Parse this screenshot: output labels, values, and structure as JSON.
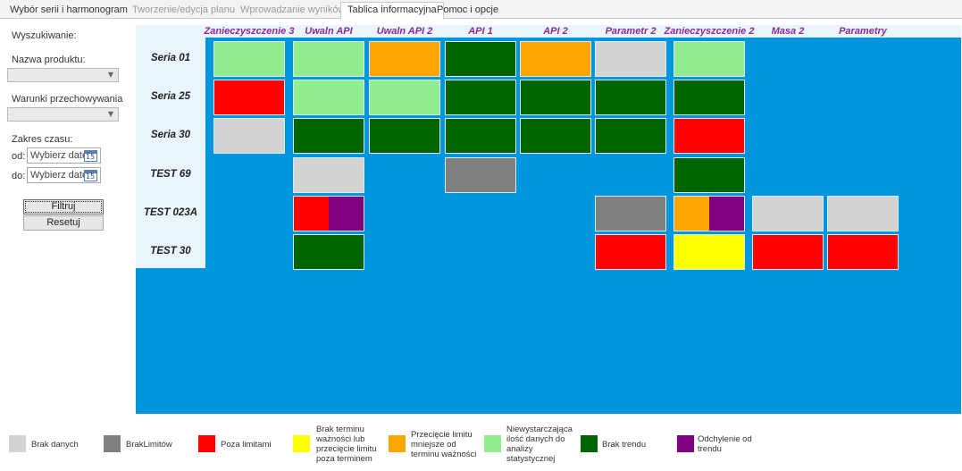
{
  "tabs": [
    {
      "label": "Wybór serii i harmonogram",
      "state": "normal"
    },
    {
      "label": "Tworzenie/edycja planu",
      "state": "disabled"
    },
    {
      "label": "Wprowadzanie wyników",
      "state": "disabled"
    },
    {
      "label": "Tablica informacyjna",
      "state": "active"
    },
    {
      "label": "Pomoc i opcje",
      "state": "normal"
    }
  ],
  "sidebar": {
    "search_title": "Wyszukiwanie:",
    "product_label": "Nazwa produktu:",
    "product_value": "",
    "storage_label": "Warunki przechowywania",
    "storage_value": "",
    "range_label": "Zakres czasu:",
    "from_label": "od:",
    "to_label": "do:",
    "date_placeholder": "Wybierz datę",
    "calendar_day": "15",
    "filter_button": "Filtruj",
    "reset_button": "Resetuj"
  },
  "board": {
    "columns": [
      "Zanieczyszczenie 3",
      "Uwaln API",
      "Uwaln API 2",
      "API 1",
      "API 2",
      "Parametr 2",
      "Zanieczyszczenie 2",
      "Masa 2",
      "Parametry"
    ],
    "rows": [
      {
        "name": "Seria 01",
        "cells": [
          "brak_danych_light",
          "niewystarczajaca",
          "przeciecie",
          "brak_trendu",
          "przeciecie",
          "brak_danych",
          "niewystarczajaca",
          null,
          null
        ]
      },
      {
        "name": "Seria  25",
        "cells": [
          "poza_limitami",
          "niewystarczajaca",
          "niewystarczajaca",
          "brak_trendu",
          "brak_trendu",
          "brak_trendu",
          "brak_trendu",
          null,
          null
        ]
      },
      {
        "name": "Seria 30",
        "cells": [
          "brak_danych",
          "brak_trendu",
          "brak_trendu",
          "brak_trendu",
          "brak_trendu",
          "brak_trendu",
          "poza_limitami",
          null,
          null
        ]
      },
      {
        "name": "TEST  69",
        "cells": [
          null,
          "brak_danych",
          null,
          "brak_limitow",
          null,
          null,
          "brak_trendu",
          null,
          null
        ]
      },
      {
        "name": "TEST 023A",
        "cells": [
          null,
          [
            "poza_limitami",
            "odchylenie"
          ],
          null,
          null,
          null,
          "brak_limitow",
          [
            "przeciecie",
            "odchylenie"
          ],
          "brak_danych",
          "brak_danych"
        ]
      },
      {
        "name": "TEST 30",
        "cells": [
          null,
          "brak_trendu",
          null,
          null,
          null,
          "poza_limitami",
          "brak_terminu",
          "poza_limitami",
          "poza_limitami"
        ]
      }
    ]
  },
  "colors": {
    "brak_danych": "#d3d3d3",
    "brak_danych_light": "#90ee90",
    "brak_limitow": "#808080",
    "poza_limitami": "#ff0000",
    "brak_terminu": "#ffff00",
    "przeciecie": "#ffa500",
    "niewystarczajaca": "#90ee90",
    "brak_trendu": "#006400",
    "odchylenie": "#800080",
    "board_bg": "#0095dd",
    "header_text": "#8c2a9c"
  },
  "legend": [
    {
      "key": "brak_danych",
      "label": "Brak danych"
    },
    {
      "key": "brak_limitow",
      "label": "BrakLimitów"
    },
    {
      "key": "poza_limitami",
      "label": "Poza limitami"
    },
    {
      "key": "brak_terminu",
      "label": "Brak terminu\nważności lub\nprzecięcie limitu\npoza terminem"
    },
    {
      "key": "przeciecie",
      "label": "Przecięcie limitu\nmniejsze od\nterminu ważności"
    },
    {
      "key": "niewystarczajaca",
      "label": "Niewystarczająca\nilość danych do\nanalizy\nstatystycznej"
    },
    {
      "key": "brak_trendu",
      "label": "Brak trendu"
    },
    {
      "key": "odchylenie",
      "label": "Odchylenie od\ntrendu"
    }
  ]
}
